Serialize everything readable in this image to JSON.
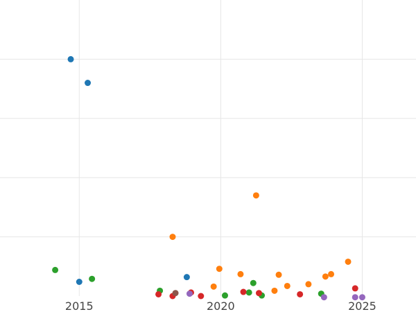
{
  "chart_data": {
    "type": "scatter",
    "title": "",
    "xlabel": "",
    "ylabel": "",
    "xlim": [
      2012.2,
      2026.9
    ],
    "ylim": [
      0,
      5.0
    ],
    "grid": true,
    "legend": "none",
    "x_ticks": [
      2015,
      2020,
      2025
    ],
    "x_tick_labels": [
      "2015",
      "2020",
      "2025"
    ],
    "y_ticks": [
      1,
      2,
      3,
      4
    ],
    "series": [
      {
        "color": "#1f77b4",
        "points": [
          {
            "x": 2014.7,
            "y": 4.0
          },
          {
            "x": 2015.3,
            "y": 3.6
          },
          {
            "x": 2015.0,
            "y": 0.24
          },
          {
            "x": 2018.8,
            "y": 0.32
          }
        ]
      },
      {
        "color": "#ff7f0e",
        "points": [
          {
            "x": 2018.3,
            "y": 1.0
          },
          {
            "x": 2021.25,
            "y": 1.7
          },
          {
            "x": 2019.95,
            "y": 0.46
          },
          {
            "x": 2019.75,
            "y": 0.16
          },
          {
            "x": 2020.7,
            "y": 0.37
          },
          {
            "x": 2021.9,
            "y": 0.09
          },
          {
            "x": 2022.05,
            "y": 0.36
          },
          {
            "x": 2022.35,
            "y": 0.17
          },
          {
            "x": 2023.1,
            "y": 0.2
          },
          {
            "x": 2023.7,
            "y": 0.33
          },
          {
            "x": 2023.9,
            "y": 0.37
          },
          {
            "x": 2024.5,
            "y": 0.58
          }
        ]
      },
      {
        "color": "#2ca02c",
        "points": [
          {
            "x": 2014.15,
            "y": 0.44
          },
          {
            "x": 2015.45,
            "y": 0.29
          },
          {
            "x": 2017.85,
            "y": 0.09
          },
          {
            "x": 2020.15,
            "y": 0.01
          },
          {
            "x": 2021.0,
            "y": 0.06
          },
          {
            "x": 2021.15,
            "y": 0.22
          },
          {
            "x": 2021.45,
            "y": 0.01
          },
          {
            "x": 2023.55,
            "y": 0.04
          }
        ]
      },
      {
        "color": "#d62728",
        "points": [
          {
            "x": 2017.8,
            "y": 0.03
          },
          {
            "x": 2018.3,
            "y": 0.0
          },
          {
            "x": 2018.95,
            "y": 0.06
          },
          {
            "x": 2019.3,
            "y": 0.0
          },
          {
            "x": 2020.8,
            "y": 0.07
          },
          {
            "x": 2021.35,
            "y": 0.05
          },
          {
            "x": 2022.8,
            "y": 0.03
          },
          {
            "x": 2024.75,
            "y": 0.13
          }
        ]
      },
      {
        "color": "#8c564b",
        "points": [
          {
            "x": 2018.4,
            "y": 0.05
          }
        ]
      },
      {
        "color": "#9467bd",
        "points": [
          {
            "x": 2018.9,
            "y": 0.04
          },
          {
            "x": 2023.65,
            "y": -0.02
          },
          {
            "x": 2024.75,
            "y": -0.02
          },
          {
            "x": 2025.0,
            "y": -0.02
          }
        ]
      }
    ]
  }
}
